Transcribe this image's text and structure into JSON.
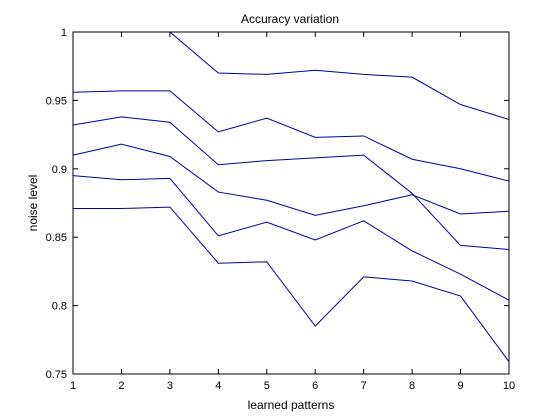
{
  "chart_data": {
    "type": "line",
    "title": "Accuracy variation",
    "xlabel": "learned patterns",
    "ylabel": "noise level",
    "xlim": [
      1,
      10
    ],
    "ylim": [
      0.75,
      1.0
    ],
    "x_ticks": [
      "1",
      "2",
      "3",
      "4",
      "5",
      "6",
      "7",
      "8",
      "9",
      "10"
    ],
    "y_ticks": [
      "0.75",
      "0.8",
      "0.85",
      "0.9",
      "0.95",
      "1"
    ],
    "grid": false,
    "line_color": "#0000a8",
    "x": [
      1,
      2,
      3,
      4,
      5,
      6,
      7,
      8,
      9,
      10
    ],
    "series": [
      {
        "values": [
          null,
          null,
          1.0,
          0.97,
          0.969,
          0.972,
          0.969,
          0.967,
          0.947,
          0.936
        ]
      },
      {
        "values": [
          0.956,
          0.957,
          0.957,
          0.927,
          0.937,
          0.923,
          0.924,
          0.907,
          0.9,
          0.891
        ]
      },
      {
        "values": [
          0.932,
          0.938,
          0.934,
          0.903,
          0.906,
          0.908,
          0.91,
          0.882,
          0.844,
          0.841
        ]
      },
      {
        "values": [
          0.91,
          0.918,
          0.909,
          0.883,
          0.877,
          0.866,
          0.873,
          0.881,
          0.867,
          0.869
        ]
      },
      {
        "values": [
          0.895,
          0.892,
          0.893,
          0.851,
          0.861,
          0.848,
          0.862,
          0.84,
          0.823,
          0.804
        ]
      },
      {
        "values": [
          0.871,
          0.871,
          0.872,
          0.831,
          0.832,
          0.785,
          0.821,
          0.818,
          0.807,
          0.759
        ]
      }
    ]
  }
}
